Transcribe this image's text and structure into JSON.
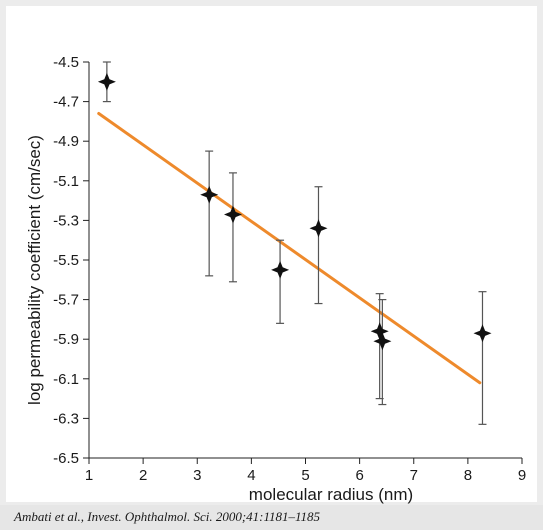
{
  "chart_data": {
    "type": "scatter",
    "title": "",
    "xlabel": "molecular radius (nm)",
    "ylabel": "log permeability coefficient (cm/sec)",
    "xlim": [
      1,
      9
    ],
    "ylim": [
      -6.5,
      -4.5
    ],
    "x_ticks": [
      "1",
      "2",
      "3",
      "4",
      "5",
      "6",
      "7",
      "8",
      "9"
    ],
    "y_ticks": [
      "-4.5",
      "-4.7",
      "-4.9",
      "-5.1",
      "-5.3",
      "-5.5",
      "-5.7",
      "-5.9",
      "-6.1",
      "-6.3",
      "-6.5"
    ],
    "grid": false,
    "points": [
      {
        "x": 1.33,
        "y": -4.6,
        "err_low": 0.1,
        "err_high": 0.1
      },
      {
        "x": 3.22,
        "y": -5.17,
        "err_low": 0.41,
        "err_high": 0.22
      },
      {
        "x": 3.66,
        "y": -5.27,
        "err_low": 0.34,
        "err_high": 0.21
      },
      {
        "x": 4.53,
        "y": -5.55,
        "err_low": 0.27,
        "err_high": 0.15
      },
      {
        "x": 5.24,
        "y": -5.34,
        "err_low": 0.38,
        "err_high": 0.21
      },
      {
        "x": 6.37,
        "y": -5.86,
        "err_low": 0.34,
        "err_high": 0.19
      },
      {
        "x": 6.42,
        "y": -5.91,
        "err_low": 0.32,
        "err_high": 0.21
      },
      {
        "x": 8.27,
        "y": -5.87,
        "err_low": 0.46,
        "err_high": 0.21
      }
    ],
    "fit_line": {
      "x": [
        1.18,
        8.22
      ],
      "y": [
        -4.76,
        -6.12
      ]
    },
    "colors": {
      "marker": "#111111",
      "error_bar": "#555555",
      "fit_line": "#ee8a2c",
      "axis": "#222222"
    }
  },
  "citation": "Ambati et al., Invest. Ophthalmol. Sci. 2000;41:1181–1185"
}
